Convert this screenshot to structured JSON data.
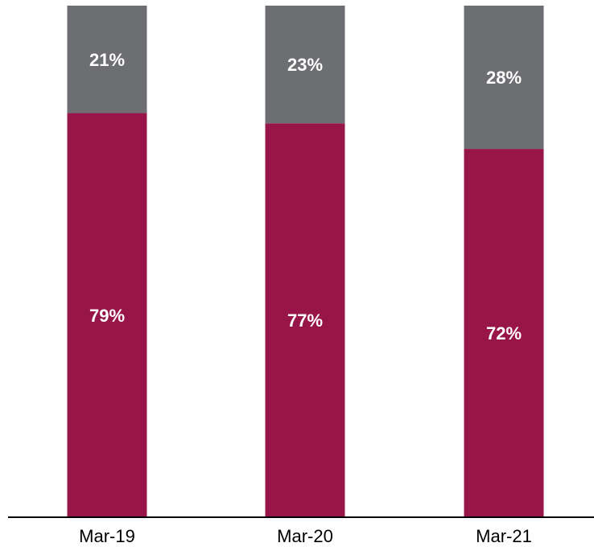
{
  "chart_data": {
    "type": "bar",
    "stacked": true,
    "percent_stacked": true,
    "categories": [
      "Mar-19",
      "Mar-20",
      "Mar-21"
    ],
    "series": [
      {
        "values": [
          79,
          77,
          72
        ],
        "color": "#98154A",
        "labels": [
          "79%",
          "77%",
          "72%"
        ]
      },
      {
        "values": [
          21,
          23,
          28
        ],
        "color": "#6D6E71",
        "labels": [
          "21%",
          "23%",
          "28%"
        ]
      }
    ],
    "ylim": [
      0,
      100
    ],
    "grid": false,
    "legend": "none",
    "xlabel": "",
    "ylabel": ""
  }
}
